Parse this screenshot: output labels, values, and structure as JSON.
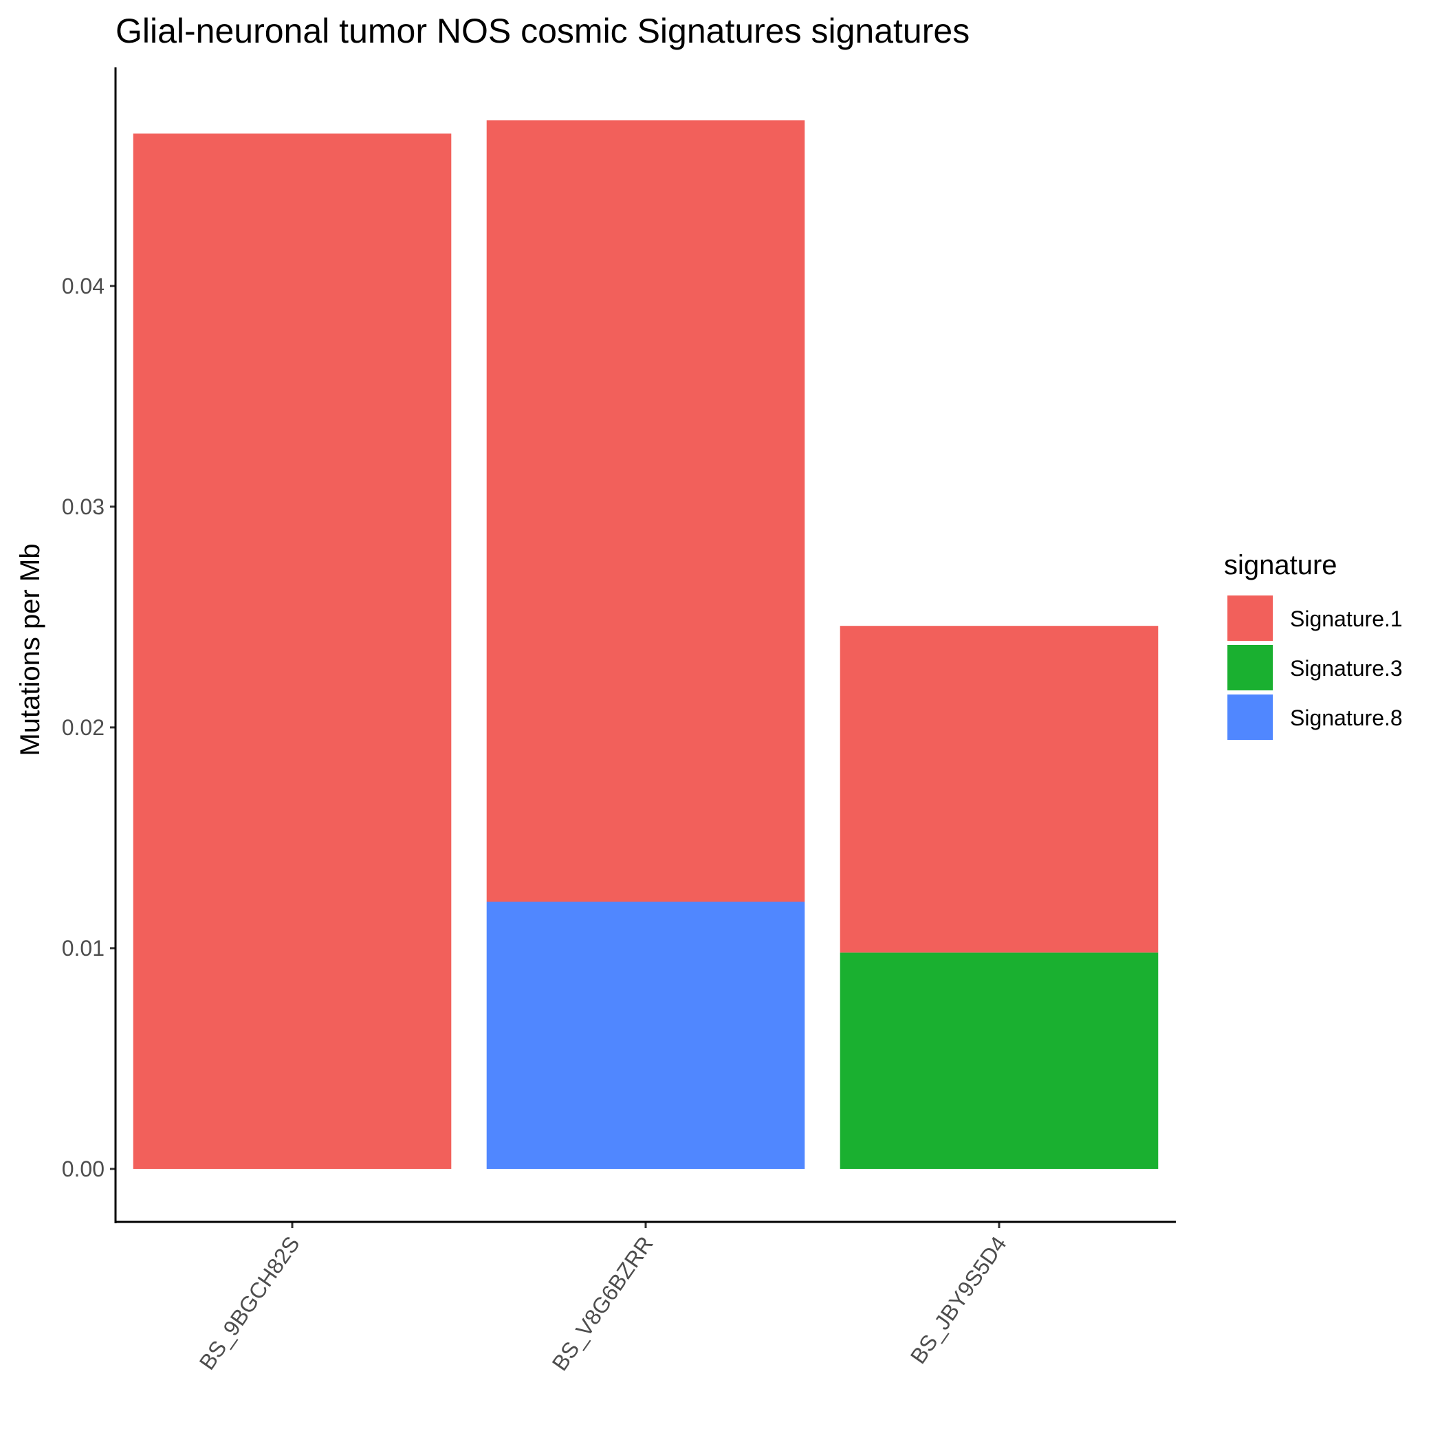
{
  "chart_data": {
    "type": "bar",
    "stacked": true,
    "title": "Glial-neuronal tumor NOS cosmic Signatures signatures",
    "xlabel": "",
    "ylabel": "Mutations per Mb",
    "categories": [
      "BS_9BGCH82S",
      "BS_V8G6BZRR",
      "BS_JBY9S5D4"
    ],
    "series": [
      {
        "name": "Signature.8",
        "color": "#5087FF",
        "values": [
          0,
          0.0121,
          0
        ]
      },
      {
        "name": "Signature.3",
        "color": "#1AB030",
        "values": [
          0,
          0,
          0.0098
        ]
      },
      {
        "name": "Signature.1",
        "color": "#F2605B",
        "values": [
          0.0469,
          0.0354,
          0.0148
        ]
      }
    ],
    "ylim": [
      -0.0024,
      0.0499
    ],
    "yticks": [
      0,
      0.01,
      0.02,
      0.03,
      0.04
    ],
    "ytick_labels": [
      "0.00",
      "0.01",
      "0.02",
      "0.03",
      "0.04"
    ],
    "grid": false,
    "legend": {
      "title": "signature",
      "position": "right",
      "items": [
        {
          "name": "Signature.1",
          "color": "#F2605B"
        },
        {
          "name": "Signature.3",
          "color": "#1AB030"
        },
        {
          "name": "Signature.8",
          "color": "#5087FF"
        }
      ]
    }
  }
}
